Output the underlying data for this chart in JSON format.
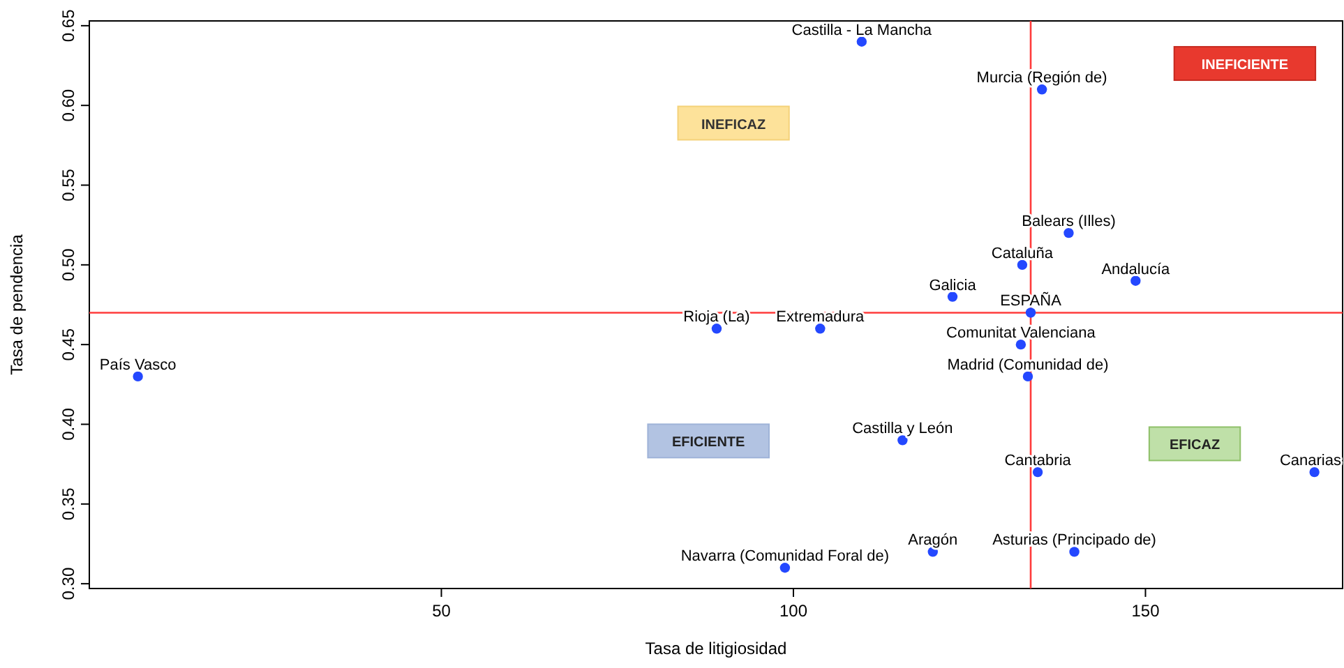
{
  "chart_data": {
    "type": "scatter",
    "xlabel": "Tasa de litigiosidad",
    "ylabel": "Tasa de pendencia",
    "x": [
      109.7,
      135.3,
      139.1,
      132.5,
      148.6,
      122.6,
      133.7,
      89.1,
      103.8,
      132.3,
      133.3,
      6.9,
      115.5,
      134.7,
      174,
      119.8,
      139.9,
      98.8
    ],
    "values": [
      0.64,
      0.61,
      0.52,
      0.5,
      0.49,
      0.48,
      0.47,
      0.46,
      0.46,
      0.45,
      0.43,
      0.43,
      0.39,
      0.37,
      0.37,
      0.32,
      0.32,
      0.31
    ],
    "value_labels": [
      "Castilla - La Mancha",
      "Murcia (Región de)",
      "Balears (Illes)",
      "Cataluña",
      "Andalucía",
      "Galicia",
      "ESPAÑA",
      "Rioja (La)",
      "Extremadura",
      "Comunitat Valenciana",
      "Madrid (Comunidad de)",
      "País Vasco",
      "Castilla y León",
      "Cantabria",
      "Canarias",
      "Aragón",
      "Asturias (Principado de)",
      "Navarra (Comunidad Foral de)"
    ],
    "color": "#2448ff",
    "marker": "circle",
    "grid": false,
    "xlim": [
      0,
      178
    ],
    "ylim": [
      0.297,
      0.653
    ],
    "xticks": [
      50,
      100,
      150
    ],
    "yticks": [
      {
        "value": 0.3,
        "label": "0.30"
      },
      {
        "value": 0.35,
        "label": "0.35"
      },
      {
        "value": 0.4,
        "label": "0.40"
      },
      {
        "value": 0.45,
        "label": "0.45"
      },
      {
        "value": 0.5,
        "label": "0.50"
      },
      {
        "value": 0.55,
        "label": "0.55"
      },
      {
        "value": 0.6,
        "label": "0.60"
      },
      {
        "value": 0.65,
        "label": "0.65"
      }
    ],
    "ref_lines": [
      {
        "axis": "x",
        "value": 133.7,
        "color": "#ff3b3b"
      },
      {
        "axis": "y",
        "value": 0.47,
        "color": "#ff3b3b"
      }
    ],
    "annotations": [
      "INEFICAZ",
      "INEFICIENTE",
      "EFICIENTE",
      "EFICAZ"
    ]
  }
}
